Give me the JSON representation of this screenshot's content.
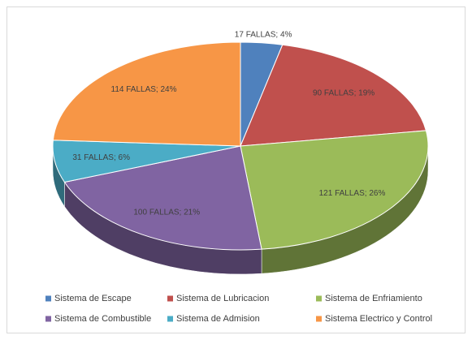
{
  "chart_data": {
    "type": "pie3d",
    "categories": [
      "Sistema de Escape",
      "Sistema de Lubricacion",
      "Sistema de Enfriamiento",
      "Sistema de Combustible",
      "Sistema de Admision",
      "Sistema Electrico y Control"
    ],
    "values": [
      17,
      90,
      121,
      100,
      31,
      114
    ],
    "value_labels": [
      "17 FALLAS; 4%",
      "90 FALLAS; 19%",
      "121 FALLAS; 26%",
      "100 FALLAS; 21%",
      "31 FALLAS; 6%",
      "114 FALLAS; 24%"
    ],
    "colors": [
      "#4f81bd",
      "#c0504d",
      "#9bbb59",
      "#8064a2",
      "#4bacc6",
      "#f79646"
    ],
    "legend": "bottom"
  }
}
